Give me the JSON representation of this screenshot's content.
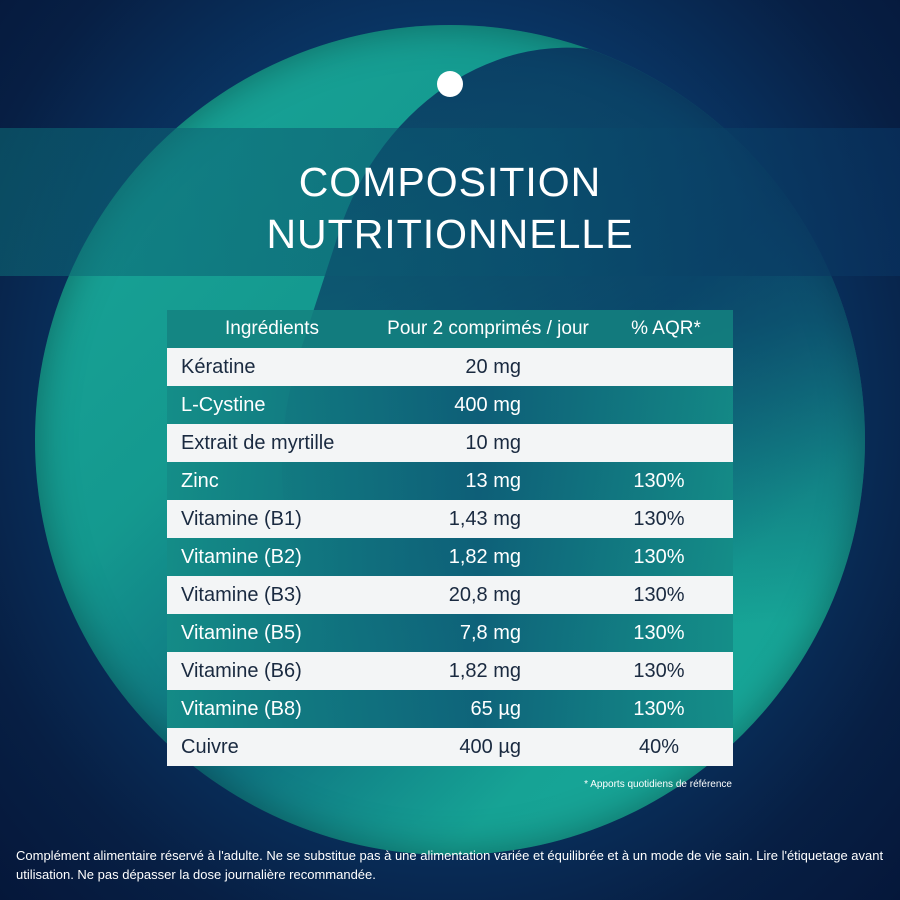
{
  "header": {
    "title_line1": "COMPOSITION",
    "title_line2": "NUTRITIONNELLE"
  },
  "table": {
    "columns": [
      "Ingrédients",
      "Pour 2 comprimés / jour",
      "% AQR*"
    ],
    "rows": [
      {
        "ingredient": "Kératine",
        "amount": "20 mg",
        "aqr": ""
      },
      {
        "ingredient": "L-Cystine",
        "amount": "400 mg",
        "aqr": ""
      },
      {
        "ingredient": "Extrait de myrtille",
        "amount": "10 mg",
        "aqr": ""
      },
      {
        "ingredient": "Zinc",
        "amount": "13 mg",
        "aqr": "130%"
      },
      {
        "ingredient": "Vitamine (B1)",
        "amount": "1,43 mg",
        "aqr": "130%"
      },
      {
        "ingredient": "Vitamine (B2)",
        "amount": "1,82 mg",
        "aqr": "130%"
      },
      {
        "ingredient": "Vitamine (B3)",
        "amount": "20,8 mg",
        "aqr": "130%"
      },
      {
        "ingredient": "Vitamine (B5)",
        "amount": "7,8 mg",
        "aqr": "130%"
      },
      {
        "ingredient": "Vitamine (B6)",
        "amount": "1,82 mg",
        "aqr": "130%"
      },
      {
        "ingredient": "Vitamine (B8)",
        "amount": "65 µg",
        "aqr": "130%"
      },
      {
        "ingredient": "Cuivre",
        "amount": "400 µg",
        "aqr": "40%"
      }
    ]
  },
  "footnote": "* Apports quotidiens de référence",
  "disclaimer": "Complément alimentaire réservé à l'adulte. Ne se substitue pas à une alimentation variée et équilibrée et à un mode de vie sain. Lire l'étiquetage avant utilisation. Ne pas dépasser la dose journalière recommandée.",
  "colors": {
    "teal": "#1aa89a",
    "navy": "#0a3c6e",
    "row_light": "#f3f5f6",
    "text_dark": "#1a2a40"
  }
}
